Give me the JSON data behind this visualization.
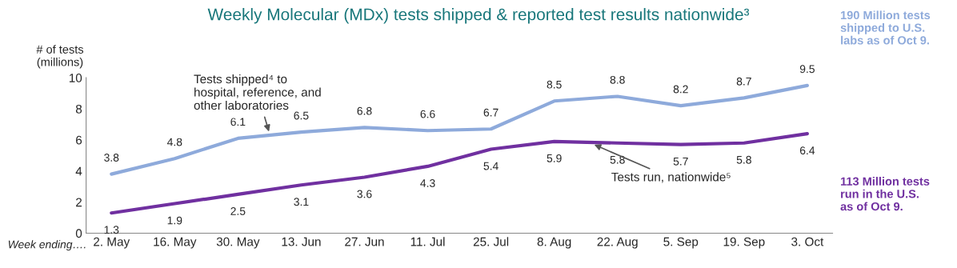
{
  "chart_data": {
    "type": "line",
    "title": "Weekly Molecular (MDx) tests shipped & reported test results nationwide³",
    "xlabel": "Week ending….",
    "ylabel": "# of tests\n(millions)",
    "categories": [
      "2. May",
      "16. May",
      "30. May",
      "13. Jun",
      "27. Jun",
      "11. Jul",
      "25. Jul",
      "8. Aug",
      "22. Aug",
      "5. Sep",
      "19. Sep",
      "3. Oct"
    ],
    "series": [
      {
        "name": "Tests shipped⁴ to\nhospital, reference, and\nother laboratories",
        "color": "#8eaadb",
        "values": [
          3.8,
          4.8,
          6.1,
          6.5,
          6.8,
          6.6,
          6.7,
          8.5,
          8.8,
          8.2,
          8.7,
          9.5
        ]
      },
      {
        "name": "Tests run, nationwide⁵",
        "color": "#7030a0",
        "values": [
          1.3,
          1.9,
          2.5,
          3.1,
          3.6,
          4.3,
          5.4,
          5.9,
          5.8,
          5.7,
          5.8,
          6.4
        ]
      }
    ],
    "annotations": [
      "190 Million tests\nshipped to U.S.\nlabs as of Oct 9.",
      "113 Million tests\nrun in the U.S.\nas of Oct 9."
    ],
    "ylim": [
      0,
      10
    ],
    "yticks": [
      0,
      2,
      4,
      6,
      8,
      10
    ],
    "grid": false,
    "data_labels": true,
    "legend": false,
    "marker": "none",
    "line_style": "solid"
  }
}
